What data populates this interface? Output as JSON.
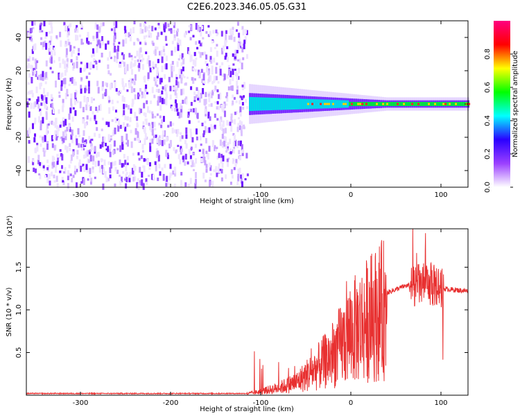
{
  "title": "C2E6.2023.346.05.05.G31",
  "chart_data": [
    {
      "type": "heatmap",
      "xlabel": "Height of straight line (km)",
      "ylabel": "Frequency (Hz)",
      "xlim": [
        -360,
        130
      ],
      "ylim": [
        -50,
        50
      ],
      "xticks": [
        -300,
        -200,
        -100,
        0,
        100
      ],
      "yticks": [
        -40,
        -20,
        0,
        20,
        40
      ],
      "description_values": {
        "noise_region_x": [
          -360,
          -113
        ],
        "signal_region_x": [
          -113,
          130
        ],
        "signal_center_freq": 0,
        "signal_halfwidth_hz_start": 12,
        "signal_halfwidth_hz_end": 4
      },
      "colorbar": {
        "label": "Normalized spectral amplitude",
        "range": [
          0.0,
          1.0
        ],
        "ticks": [
          0.0,
          0.2,
          0.4,
          0.6,
          0.8
        ],
        "colors": [
          "#ffffff",
          "#9b40ff",
          "#2a00ff",
          "#00ffff",
          "#00ff00",
          "#ffff00",
          "#ff0000",
          "#ff0080"
        ]
      }
    },
    {
      "type": "line",
      "xlabel": "Height of straight line (km)",
      "ylabel": "SNR (10 * v/v)",
      "scale_label": "(x10⁴)",
      "xlim": [
        -360,
        130
      ],
      "ylim": [
        0,
        1.95
      ],
      "xticks": [
        -300,
        -200,
        -100,
        0,
        100
      ],
      "yticks": [
        0.5,
        1.0,
        1.5
      ],
      "ytick_labels": [
        "0.5",
        "1.0",
        "1.5"
      ],
      "color": "#e83030",
      "envelope": {
        "x": [
          -360,
          -115,
          -100,
          -80,
          -60,
          -40,
          -20,
          0,
          20,
          40,
          60,
          80,
          90,
          100,
          110,
          130
        ],
        "y": [
          0.02,
          0.02,
          0.05,
          0.1,
          0.18,
          0.35,
          0.55,
          0.85,
          1.05,
          1.2,
          1.28,
          1.3,
          1.3,
          1.25,
          1.24,
          1.22
        ]
      }
    }
  ],
  "colors": {
    "signal": "#e83030",
    "axis": "#000000"
  }
}
